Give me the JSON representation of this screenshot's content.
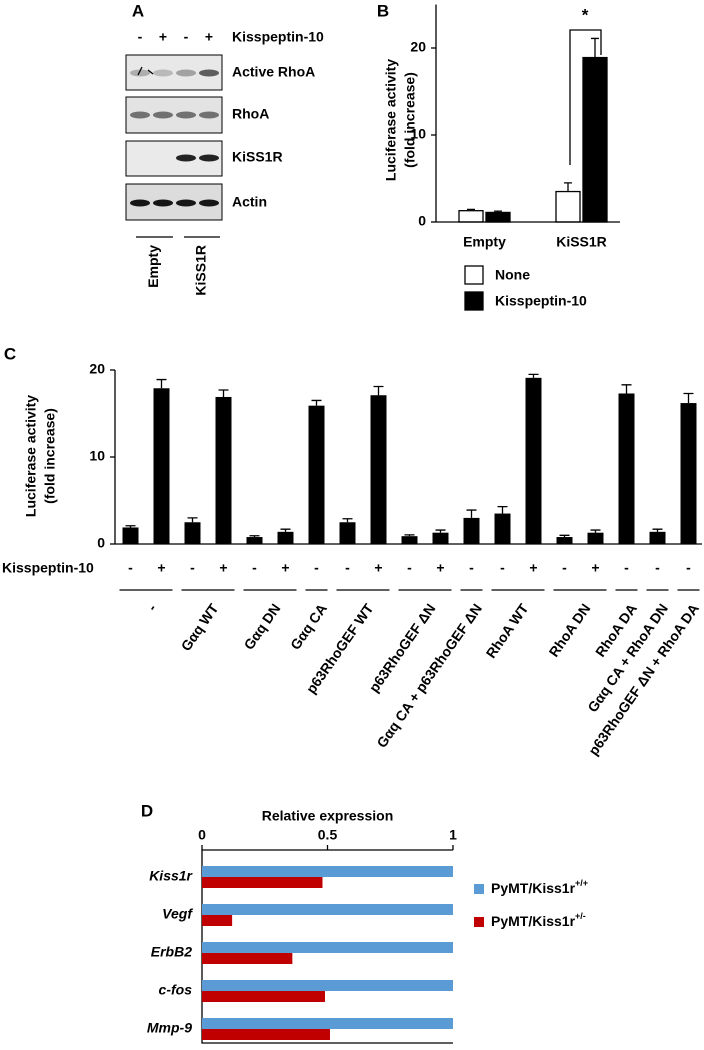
{
  "blot": {
    "panel": "A",
    "signs": [
      "-",
      "+",
      "-",
      "+"
    ],
    "treatment": "Kisspeptin-10",
    "rows": [
      "Active RhoA",
      "RhoA",
      "KiSS1R",
      "Actin"
    ],
    "groups": [
      "Empty",
      "KiSS1R"
    ]
  },
  "chart_data": [
    {
      "panel": "B",
      "type": "bar",
      "ylabel": [
        "Luciferase activity",
        "(fold increase)"
      ],
      "categories": [
        "Empty",
        "KiSS1R"
      ],
      "series": [
        {
          "name": "None",
          "color": "#ffffff",
          "values": [
            1.3,
            3.5
          ],
          "errors": [
            0.15,
            1.0
          ]
        },
        {
          "name": "Kisspeptin-10",
          "color": "#000000",
          "values": [
            1.1,
            18.9
          ],
          "errors": [
            0.15,
            2.2
          ]
        }
      ],
      "ylim": [
        0,
        25
      ],
      "yticks": [
        0,
        10,
        20
      ],
      "annotation": "*"
    },
    {
      "panel": "C",
      "type": "bar",
      "ylabel": [
        "Luciferase activity",
        "(fold increase)"
      ],
      "row_label": "Kisspeptin-10",
      "color": "#000000",
      "groups": [
        {
          "label": "-",
          "signs": [
            "-",
            "+"
          ],
          "values": [
            1.9,
            17.9
          ],
          "errors": [
            0.2,
            1.0
          ]
        },
        {
          "label": "Gαq WT",
          "signs": [
            "-",
            "+"
          ],
          "values": [
            2.5,
            16.9
          ],
          "errors": [
            0.5,
            0.8
          ]
        },
        {
          "label": "Gαq DN",
          "signs": [
            "-",
            "+"
          ],
          "values": [
            0.8,
            1.4
          ],
          "errors": [
            0.15,
            0.3
          ]
        },
        {
          "label": "Gαq CA",
          "signs": [
            "-"
          ],
          "values": [
            15.9
          ],
          "errors": [
            0.6
          ]
        },
        {
          "label": "p63RhoGEF WT",
          "signs": [
            "-",
            "+"
          ],
          "values": [
            2.5,
            17.1
          ],
          "errors": [
            0.4,
            1.0
          ]
        },
        {
          "label": "p63RhoGEF ΔN",
          "signs": [
            "-",
            "+"
          ],
          "values": [
            0.9,
            1.3
          ],
          "errors": [
            0.15,
            0.3
          ]
        },
        {
          "label": "Gαq CA + p63RhoGEF ΔN",
          "signs": [
            "-"
          ],
          "values": [
            3.0
          ],
          "errors": [
            0.9
          ]
        },
        {
          "label": "RhoA WT",
          "signs": [
            "-",
            "+"
          ],
          "values": [
            3.5,
            19.1
          ],
          "errors": [
            0.8,
            0.4
          ]
        },
        {
          "label": "RhoA DN",
          "signs": [
            "-",
            "+"
          ],
          "values": [
            0.8,
            1.3
          ],
          "errors": [
            0.2,
            0.3
          ]
        },
        {
          "label": "RhoA DA",
          "signs": [
            "-"
          ],
          "values": [
            17.3
          ],
          "errors": [
            1.0
          ]
        },
        {
          "label": "Gαq CA + RhoA DN",
          "signs": [
            "-"
          ],
          "values": [
            1.4
          ],
          "errors": [
            0.3
          ]
        },
        {
          "label": "p63RhoGEF ΔN + RhoA DA",
          "signs": [
            "-"
          ],
          "values": [
            16.2
          ],
          "errors": [
            1.1
          ]
        }
      ],
      "ylim": [
        0,
        20
      ],
      "yticks": [
        0,
        10,
        20
      ]
    },
    {
      "panel": "D",
      "type": "hbar",
      "xlabel": "Relative expression",
      "categories": [
        "Kiss1r",
        "Vegf",
        "ErbB2",
        "c-fos",
        "Mmp-9"
      ],
      "series": [
        {
          "name": "PyMT/Kiss1r",
          "superscript": "+/+",
          "color": "#5b9bd5",
          "values": [
            1,
            1,
            1,
            1,
            1
          ]
        },
        {
          "name": "PyMT/Kiss1r",
          "superscript": "+/-",
          "color": "#c00000",
          "values": [
            0.48,
            0.12,
            0.36,
            0.49,
            0.51
          ]
        }
      ],
      "xlim": [
        0,
        1
      ],
      "xticks": [
        0,
        0.5,
        1
      ]
    }
  ]
}
